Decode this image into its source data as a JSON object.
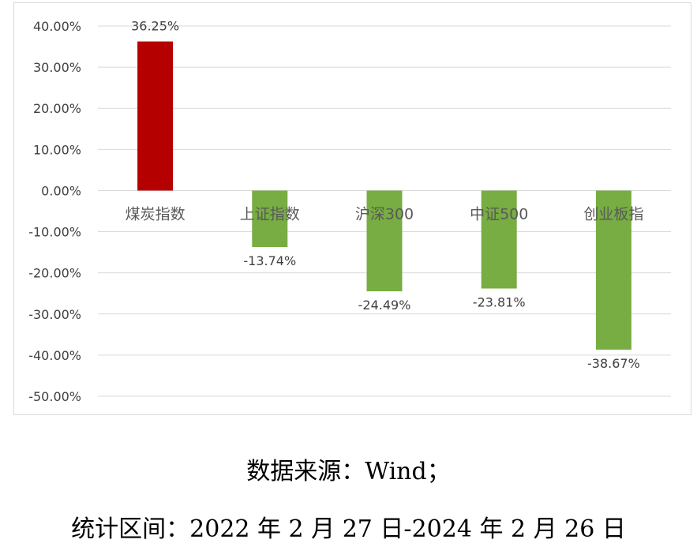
{
  "chart_data": {
    "type": "bar",
    "categories": [
      "煤炭指数",
      "上证指数",
      "沪深300",
      "中证500",
      "创业板指"
    ],
    "values": [
      36.25,
      -13.74,
      -24.49,
      -23.81,
      -38.67
    ],
    "data_labels": [
      "36.25%",
      "-13.74%",
      "-24.49%",
      "-23.81%",
      "-38.67%"
    ],
    "ylim": [
      -50,
      40
    ],
    "yticks": [
      40,
      30,
      20,
      10,
      0,
      -10,
      -20,
      -30,
      -40,
      -50
    ],
    "ytick_labels": [
      "40.00%",
      "30.00%",
      "20.00%",
      "10.00%",
      "0.00%",
      "-10.00%",
      "-20.00%",
      "-30.00%",
      "-40.00%",
      "-50.00%"
    ],
    "grid": true,
    "colors": {
      "positive": "#b50000",
      "negative": "#77ad42",
      "grid": "#d9d9d9"
    }
  },
  "captions": {
    "source": "数据来源：Wind；",
    "period": "统计区间：2022 年 2 月 27 日-2024 年 2 月 26 日"
  }
}
